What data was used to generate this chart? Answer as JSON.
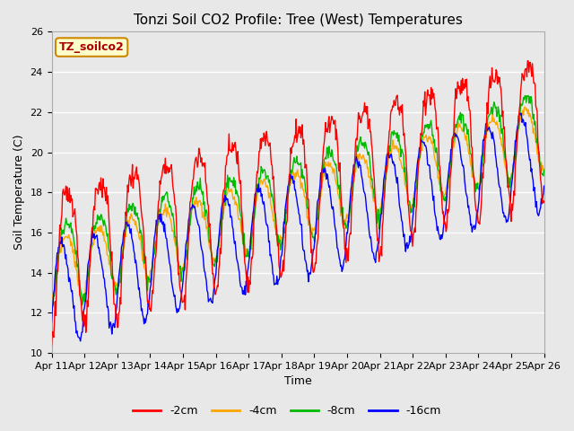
{
  "title": "Tonzi Soil CO2 Profile: Tree (West) Temperatures",
  "xlabel": "Time",
  "ylabel": "Soil Temperature (C)",
  "ylim": [
    10,
    26
  ],
  "yticks": [
    10,
    12,
    14,
    16,
    18,
    20,
    22,
    24,
    26
  ],
  "x_labels": [
    "Apr 11",
    "Apr 12",
    "Apr 13",
    "Apr 14",
    "Apr 15",
    "Apr 16",
    "Apr 17",
    "Apr 18",
    "Apr 19",
    "Apr 20",
    "Apr 21",
    "Apr 22",
    "Apr 23",
    "Apr 24",
    "Apr 25",
    "Apr 26"
  ],
  "legend_label": "TZ_soilco2",
  "series_labels": [
    "-2cm",
    "-4cm",
    "-8cm",
    "-16cm"
  ],
  "series_colors": [
    "#ff0000",
    "#ffa500",
    "#00bb00",
    "#0000ff"
  ],
  "background_color": "#e8e8e8",
  "title_fontsize": 11,
  "axis_fontsize": 9,
  "tick_fontsize": 8,
  "legend_fontsize": 9,
  "n_points": 720
}
